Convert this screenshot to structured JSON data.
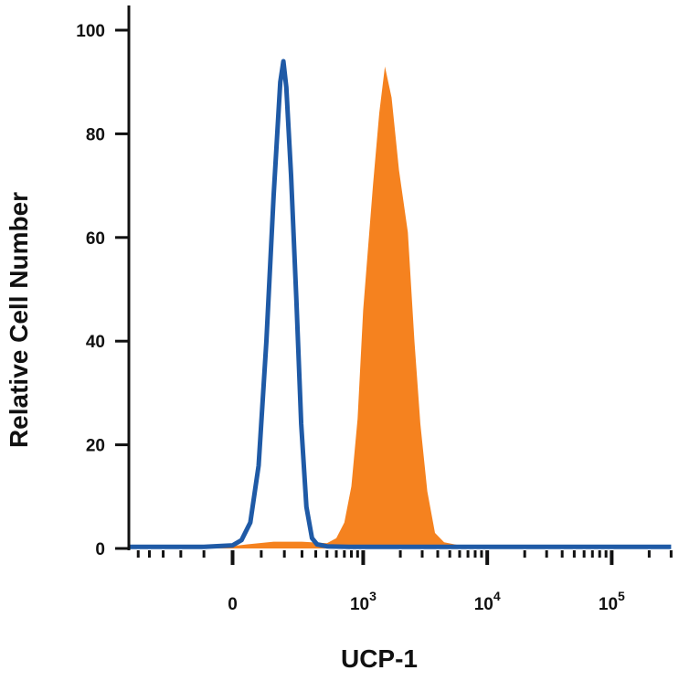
{
  "chart_data": {
    "type": "area",
    "xlabel": "UCP-1",
    "ylabel": "Relative Cell Number",
    "ylim": [
      0,
      100
    ],
    "y_ticks": [
      "0",
      "20",
      "40",
      "60",
      "80",
      "100"
    ],
    "x_scale": "biexponential",
    "x_ticks": [
      {
        "value": 0,
        "base": "0",
        "exp": ""
      },
      {
        "value": 1000,
        "base": "10",
        "exp": "3"
      },
      {
        "value": 10000,
        "base": "10",
        "exp": "4"
      },
      {
        "value": 100000,
        "base": "10",
        "exp": "5"
      }
    ],
    "series": [
      {
        "style": "outline",
        "color": "#1f5aa6",
        "points": [
          [
            -600,
            0.3
          ],
          [
            -100,
            0.3
          ],
          [
            0,
            0.6
          ],
          [
            30,
            1.6
          ],
          [
            60,
            5
          ],
          [
            90,
            16
          ],
          [
            120,
            40
          ],
          [
            150,
            68
          ],
          [
            180,
            90
          ],
          [
            195,
            94
          ],
          [
            210,
            89
          ],
          [
            235,
            72
          ],
          [
            265,
            48
          ],
          [
            295,
            24
          ],
          [
            330,
            8
          ],
          [
            370,
            2
          ],
          [
            410,
            0.8
          ],
          [
            500,
            0.4
          ],
          [
            800,
            0.3
          ],
          [
            100000,
            0.3
          ],
          [
            300000,
            0.3
          ]
        ]
      },
      {
        "style": "filled",
        "color": "#f5821f",
        "points": [
          [
            -600,
            0
          ],
          [
            -20,
            0.3
          ],
          [
            50,
            0.8
          ],
          [
            150,
            1.3
          ],
          [
            300,
            1.3
          ],
          [
            500,
            1.0
          ],
          [
            600,
            2
          ],
          [
            700,
            5
          ],
          [
            800,
            12
          ],
          [
            900,
            25
          ],
          [
            1000,
            46
          ],
          [
            1200,
            70
          ],
          [
            1350,
            84
          ],
          [
            1500,
            93
          ],
          [
            1700,
            87
          ],
          [
            1950,
            73
          ],
          [
            2300,
            61
          ],
          [
            2600,
            40
          ],
          [
            2900,
            24
          ],
          [
            3300,
            11
          ],
          [
            3800,
            3
          ],
          [
            4500,
            1.2
          ],
          [
            6000,
            0.6
          ],
          [
            8000,
            0.3
          ],
          [
            100000,
            0
          ],
          [
            300000,
            0
          ]
        ]
      }
    ]
  }
}
